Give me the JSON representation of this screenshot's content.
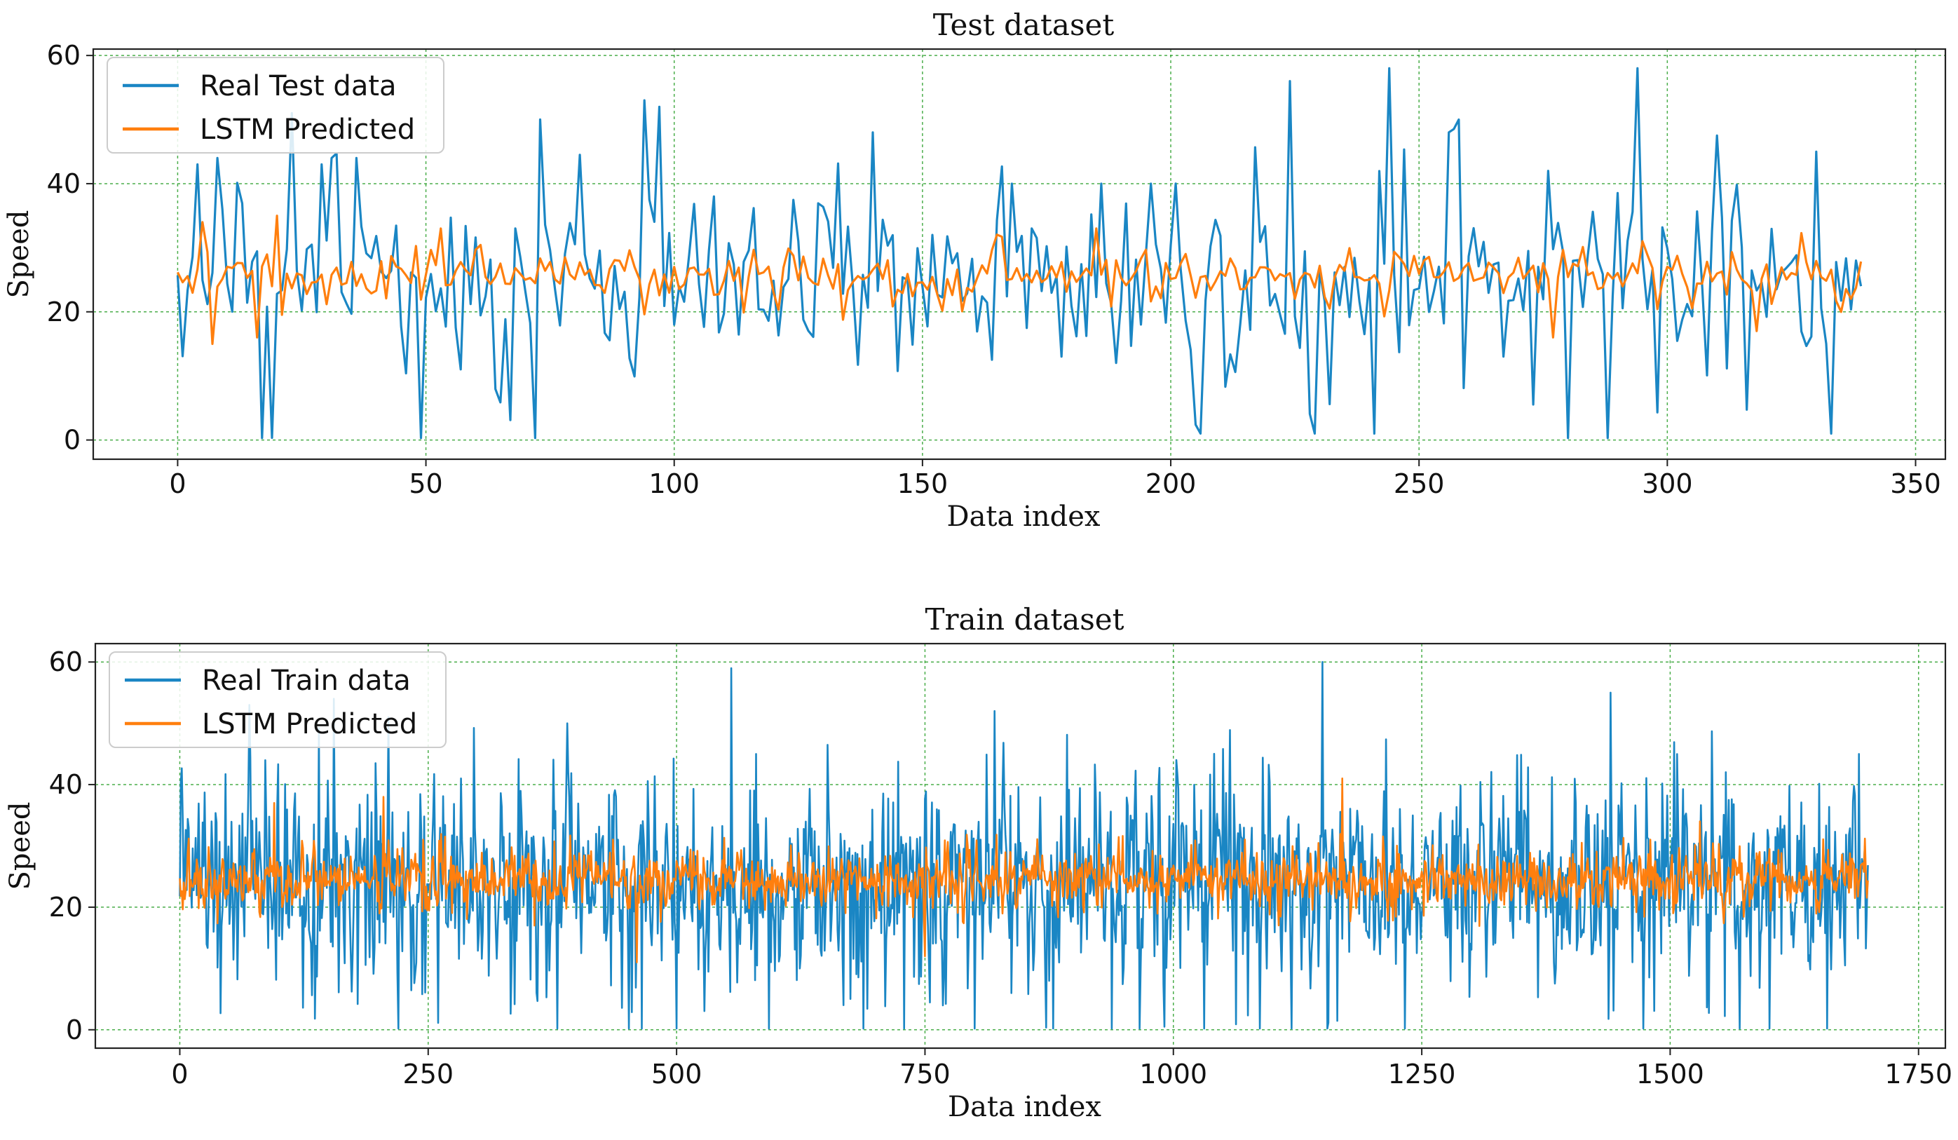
{
  "chart_data": [
    {
      "type": "line",
      "title": "Test dataset",
      "xlabel": "Data index",
      "ylabel": "Speed",
      "xlim": [
        -17,
        356
      ],
      "ylim": [
        -3,
        61
      ],
      "xticks": [
        0,
        50,
        100,
        150,
        200,
        250,
        300,
        350
      ],
      "yticks": [
        0,
        20,
        40,
        60
      ],
      "grid": true,
      "legend_position": "upper-left",
      "series": [
        {
          "name": "Real Test data",
          "color": "#1a86c4",
          "n": 340,
          "mean": 25.5,
          "spread": 13,
          "peaks": [
            [
              4,
              43
            ],
            [
              8,
              44
            ],
            [
              17,
              0.3
            ],
            [
              23,
              51
            ],
            [
              29,
              43
            ],
            [
              31,
              44
            ],
            [
              36,
              44
            ],
            [
              49,
              0.3
            ],
            [
              72,
              0.3
            ],
            [
              73,
              50
            ],
            [
              94,
              53
            ],
            [
              97,
              52
            ],
            [
              108,
              38
            ],
            [
              125,
              31
            ],
            [
              140,
              48
            ],
            [
              152,
              32
            ],
            [
              168,
              40
            ],
            [
              172,
              33
            ],
            [
              186,
              40
            ],
            [
              196,
              40
            ],
            [
              206,
              1
            ],
            [
              224,
              56
            ],
            [
              229,
              1
            ],
            [
              241,
              1
            ],
            [
              244,
              58
            ],
            [
              256,
              48
            ],
            [
              258,
              50
            ],
            [
              276,
              42
            ],
            [
              280,
              0.3
            ],
            [
              288,
              0.3
            ],
            [
              294,
              58
            ],
            [
              330,
              45
            ],
            [
              333,
              1
            ],
            [
              339,
              24
            ]
          ]
        },
        {
          "name": "LSTM Predicted",
          "color": "#ff7f0e",
          "n": 340,
          "mean": 25.5,
          "spread": 3.4,
          "peaks": [
            [
              5,
              34
            ],
            [
              7,
              15
            ],
            [
              16,
              16
            ],
            [
              20,
              35
            ],
            [
              53,
              33
            ],
            [
              185,
              33
            ],
            [
              277,
              16
            ],
            [
              318,
              17
            ],
            [
              335,
              20
            ]
          ]
        }
      ]
    },
    {
      "type": "line",
      "title": "Train dataset",
      "xlabel": "Data index",
      "ylabel": "Speed",
      "xlim": [
        -85,
        1777
      ],
      "ylim": [
        -3,
        63
      ],
      "xticks": [
        0,
        250,
        500,
        750,
        1000,
        1250,
        1500,
        1750
      ],
      "yticks": [
        0,
        20,
        40,
        60
      ],
      "grid": true,
      "legend_position": "upper-left",
      "series": [
        {
          "name": "Real Train data",
          "color": "#1a86c4",
          "n": 1700,
          "mean": 23.5,
          "spread": 13,
          "peaks": [
            [
              70,
              53
            ],
            [
              155,
              54
            ],
            [
              210,
              51
            ],
            [
              390,
              50
            ],
            [
              465,
              0.2
            ],
            [
              500,
              0.2
            ],
            [
              555,
              59
            ],
            [
              580,
              45
            ],
            [
              820,
              52
            ],
            [
              1150,
              60
            ],
            [
              1155,
              0.2
            ],
            [
              1440,
              55
            ],
            [
              1600,
              0.2
            ],
            [
              1690,
              45
            ]
          ]
        },
        {
          "name": "LSTM Predicted",
          "color": "#ff7f0e",
          "n": 1700,
          "mean": 24.5,
          "spread": 3.8,
          "peaks": [
            [
              95,
              37
            ],
            [
              205,
              38
            ],
            [
              460,
              11
            ],
            [
              750,
              12
            ],
            [
              1170,
              41
            ],
            [
              1530,
              34
            ]
          ]
        }
      ]
    }
  ]
}
